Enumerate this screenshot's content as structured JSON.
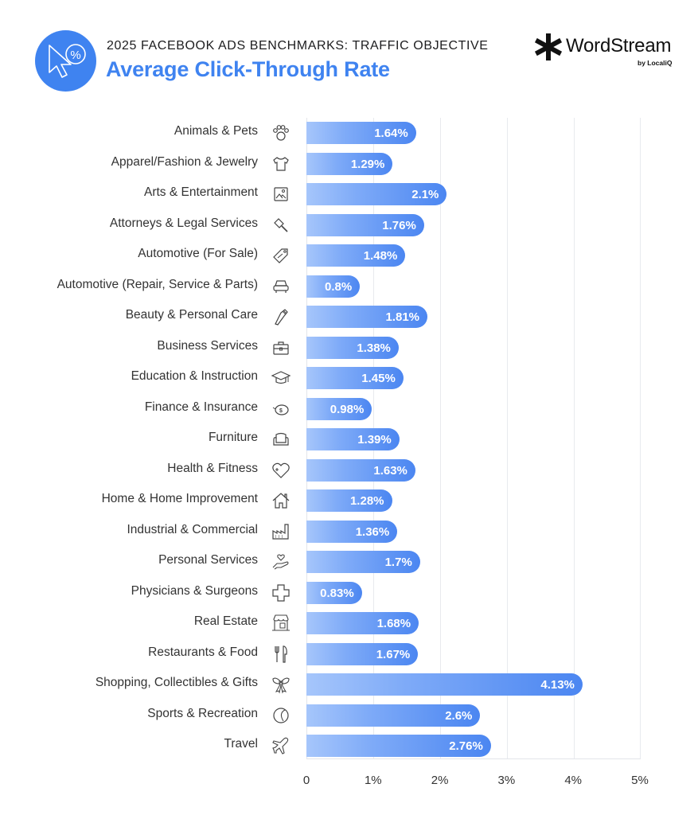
{
  "header": {
    "supertitle": "2025 FACEBOOK ADS BENCHMARKS: TRAFFIC OBJECTIVE",
    "title": "Average Click-Through Rate",
    "logo_icon": "cursor-percent-icon",
    "brand": {
      "name": "WordStream",
      "sub": "by LocaliQ"
    }
  },
  "colors": {
    "accent": "#3f83f0",
    "bar_start": "#a6c6fb",
    "bar_end": "#4b86f1",
    "text": "#333333"
  },
  "axis": {
    "ticks": [
      "0",
      "1%",
      "2%",
      "3%",
      "4%",
      "5%"
    ]
  },
  "chart_data": {
    "type": "bar",
    "orientation": "horizontal",
    "title": "Average Click-Through Rate",
    "subtitle": "2025 FACEBOOK ADS BENCHMARKS: TRAFFIC OBJECTIVE",
    "xlabel": "",
    "ylabel": "",
    "xlim": [
      0,
      5
    ],
    "grid": true,
    "categories": [
      "Animals & Pets",
      "Apparel/Fashion & Jewelry",
      "Arts & Entertainment",
      "Attorneys & Legal Services",
      "Automotive (For Sale)",
      "Automotive (Repair, Service & Parts)",
      "Beauty & Personal Care",
      "Business Services",
      "Education & Instruction",
      "Finance & Insurance",
      "Furniture",
      "Health & Fitness",
      "Home & Home Improvement",
      "Industrial & Commercial",
      "Personal Services",
      "Physicians & Surgeons",
      "Real Estate",
      "Restaurants & Food",
      "Shopping, Collectibles & Gifts",
      "Sports & Recreation",
      "Travel"
    ],
    "values": [
      1.64,
      1.29,
      2.1,
      1.76,
      1.48,
      0.8,
      1.81,
      1.38,
      1.45,
      0.98,
      1.39,
      1.63,
      1.28,
      1.36,
      1.7,
      0.83,
      1.68,
      1.67,
      4.13,
      2.6,
      2.76
    ],
    "value_labels": [
      "1.64%",
      "1.29%",
      "2.1%",
      "1.76%",
      "1.48%",
      "0.8%",
      "1.81%",
      "1.38%",
      "1.45%",
      "0.98%",
      "1.39%",
      "1.63%",
      "1.28%",
      "1.36%",
      "1.7%",
      "0.83%",
      "1.68%",
      "1.67%",
      "4.13%",
      "2.6%",
      "2.76%"
    ],
    "icons": [
      "paw-icon",
      "tshirt-icon",
      "picture-icon",
      "gavel-icon",
      "price-tag-icon",
      "car-icon",
      "comb-icon",
      "briefcase-icon",
      "graduation-cap-icon",
      "piggy-bank-icon",
      "armchair-icon",
      "heart-plus-icon",
      "house-icon",
      "factory-icon",
      "hand-heart-icon",
      "medical-cross-icon",
      "storefront-icon",
      "fork-knife-icon",
      "bow-icon",
      "ball-icon",
      "airplane-icon"
    ]
  }
}
